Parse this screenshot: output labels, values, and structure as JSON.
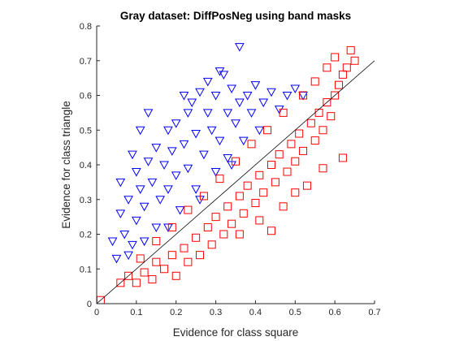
{
  "chart_data": {
    "type": "scatter",
    "title": "Gray dataset: DiffPosNeg using band masks",
    "xlabel": "Evidence for class square",
    "ylabel": "Evidence for class triangle",
    "xlim": [
      0,
      0.7
    ],
    "ylim": [
      0,
      0.8
    ],
    "xticks": [
      "0",
      "0.1",
      "0.2",
      "0.3",
      "0.4",
      "0.5",
      "0.6",
      "0.7"
    ],
    "yticks": [
      "0",
      "0.1",
      "0.2",
      "0.3",
      "0.4",
      "0.5",
      "0.6",
      "0.7",
      "0.8"
    ],
    "grid": false,
    "legend": "none",
    "reference_line": {
      "from": [
        0,
        0
      ],
      "to": [
        0.7,
        0.7
      ],
      "color": "#000000"
    },
    "series": [
      {
        "marker": "triangle-down",
        "color": "#0000ff",
        "hollow": true,
        "points": [
          [
            0.05,
            0.13
          ],
          [
            0.07,
            0.2
          ],
          [
            0.06,
            0.26
          ],
          [
            0.08,
            0.3
          ],
          [
            0.09,
            0.17
          ],
          [
            0.1,
            0.24
          ],
          [
            0.11,
            0.33
          ],
          [
            0.1,
            0.38
          ],
          [
            0.12,
            0.28
          ],
          [
            0.13,
            0.41
          ],
          [
            0.14,
            0.35
          ],
          [
            0.15,
            0.45
          ],
          [
            0.15,
            0.22
          ],
          [
            0.16,
            0.3
          ],
          [
            0.17,
            0.4
          ],
          [
            0.18,
            0.5
          ],
          [
            0.18,
            0.33
          ],
          [
            0.19,
            0.44
          ],
          [
            0.2,
            0.37
          ],
          [
            0.2,
            0.52
          ],
          [
            0.21,
            0.27
          ],
          [
            0.22,
            0.46
          ],
          [
            0.23,
            0.55
          ],
          [
            0.23,
            0.39
          ],
          [
            0.24,
            0.58
          ],
          [
            0.25,
            0.49
          ],
          [
            0.25,
            0.33
          ],
          [
            0.26,
            0.61
          ],
          [
            0.27,
            0.43
          ],
          [
            0.28,
            0.55
          ],
          [
            0.28,
            0.64
          ],
          [
            0.29,
            0.5
          ],
          [
            0.3,
            0.38
          ],
          [
            0.3,
            0.6
          ],
          [
            0.31,
            0.47
          ],
          [
            0.32,
            0.66
          ],
          [
            0.33,
            0.55
          ],
          [
            0.33,
            0.42
          ],
          [
            0.34,
            0.62
          ],
          [
            0.35,
            0.52
          ],
          [
            0.36,
            0.58
          ],
          [
            0.37,
            0.47
          ],
          [
            0.38,
            0.6
          ],
          [
            0.39,
            0.55
          ],
          [
            0.4,
            0.63
          ],
          [
            0.41,
            0.5
          ],
          [
            0.42,
            0.58
          ],
          [
            0.44,
            0.61
          ],
          [
            0.46,
            0.56
          ],
          [
            0.48,
            0.6
          ],
          [
            0.5,
            0.62
          ],
          [
            0.52,
            0.6
          ],
          [
            0.18,
            0.22
          ],
          [
            0.26,
            0.3
          ],
          [
            0.34,
            0.4
          ],
          [
            0.08,
            0.14
          ],
          [
            0.12,
            0.18
          ],
          [
            0.22,
            0.6
          ],
          [
            0.31,
            0.67
          ],
          [
            0.36,
            0.74
          ],
          [
            0.04,
            0.18
          ],
          [
            0.06,
            0.35
          ],
          [
            0.09,
            0.43
          ],
          [
            0.11,
            0.5
          ],
          [
            0.13,
            0.55
          ]
        ]
      },
      {
        "marker": "square",
        "color": "#ff0000",
        "hollow": true,
        "points": [
          [
            0.01,
            0.01
          ],
          [
            0.06,
            0.06
          ],
          [
            0.08,
            0.08
          ],
          [
            0.1,
            0.06
          ],
          [
            0.12,
            0.09
          ],
          [
            0.14,
            0.07
          ],
          [
            0.15,
            0.12
          ],
          [
            0.17,
            0.1
          ],
          [
            0.19,
            0.14
          ],
          [
            0.2,
            0.08
          ],
          [
            0.22,
            0.16
          ],
          [
            0.23,
            0.12
          ],
          [
            0.25,
            0.19
          ],
          [
            0.26,
            0.14
          ],
          [
            0.28,
            0.22
          ],
          [
            0.29,
            0.17
          ],
          [
            0.3,
            0.25
          ],
          [
            0.32,
            0.2
          ],
          [
            0.33,
            0.28
          ],
          [
            0.34,
            0.23
          ],
          [
            0.36,
            0.31
          ],
          [
            0.37,
            0.26
          ],
          [
            0.38,
            0.34
          ],
          [
            0.4,
            0.29
          ],
          [
            0.41,
            0.37
          ],
          [
            0.42,
            0.32
          ],
          [
            0.44,
            0.4
          ],
          [
            0.45,
            0.35
          ],
          [
            0.46,
            0.43
          ],
          [
            0.48,
            0.38
          ],
          [
            0.49,
            0.46
          ],
          [
            0.5,
            0.41
          ],
          [
            0.51,
            0.49
          ],
          [
            0.52,
            0.44
          ],
          [
            0.54,
            0.52
          ],
          [
            0.55,
            0.47
          ],
          [
            0.56,
            0.55
          ],
          [
            0.57,
            0.5
          ],
          [
            0.58,
            0.58
          ],
          [
            0.59,
            0.54
          ],
          [
            0.6,
            0.6
          ],
          [
            0.61,
            0.63
          ],
          [
            0.62,
            0.66
          ],
          [
            0.63,
            0.68
          ],
          [
            0.64,
            0.73
          ],
          [
            0.65,
            0.7
          ],
          [
            0.6,
            0.71
          ],
          [
            0.58,
            0.68
          ],
          [
            0.55,
            0.64
          ],
          [
            0.52,
            0.6
          ],
          [
            0.47,
            0.55
          ],
          [
            0.43,
            0.5
          ],
          [
            0.39,
            0.46
          ],
          [
            0.35,
            0.41
          ],
          [
            0.31,
            0.36
          ],
          [
            0.27,
            0.31
          ],
          [
            0.23,
            0.27
          ],
          [
            0.19,
            0.22
          ],
          [
            0.15,
            0.18
          ],
          [
            0.11,
            0.13
          ],
          [
            0.53,
            0.34
          ],
          [
            0.47,
            0.28
          ],
          [
            0.41,
            0.24
          ],
          [
            0.36,
            0.2
          ],
          [
            0.44,
            0.21
          ],
          [
            0.57,
            0.39
          ],
          [
            0.62,
            0.42
          ],
          [
            0.5,
            0.32
          ]
        ]
      }
    ]
  }
}
